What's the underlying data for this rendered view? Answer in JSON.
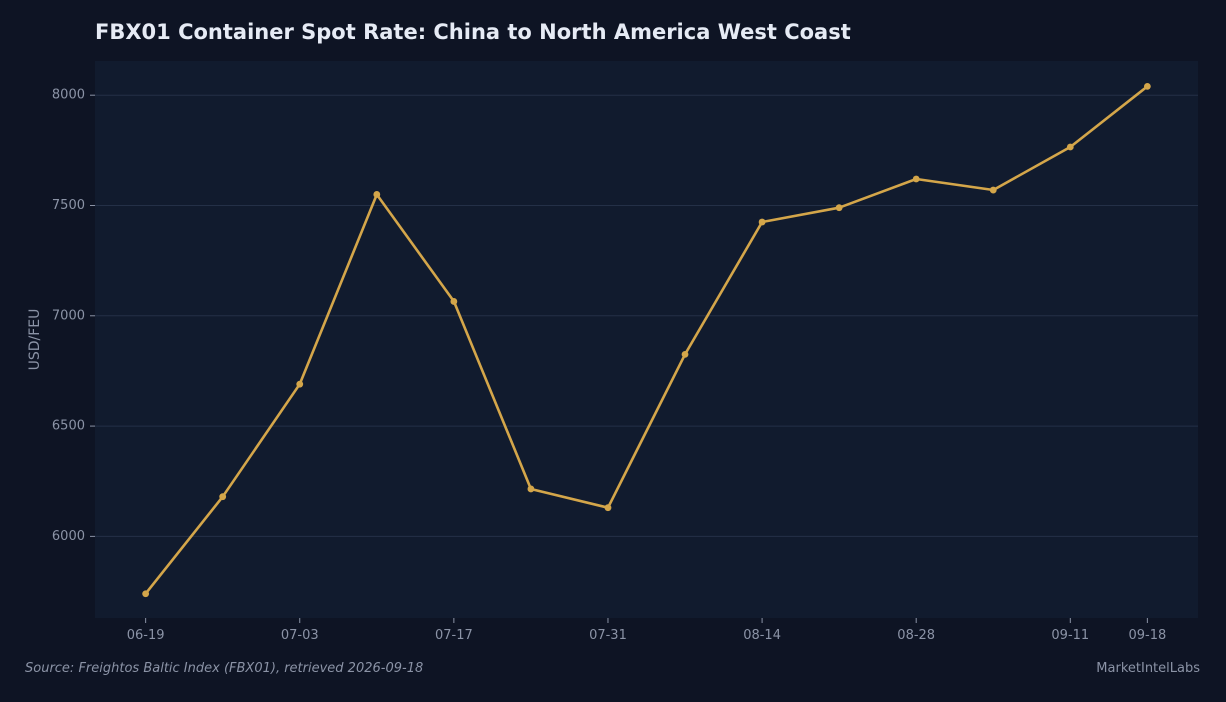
{
  "colors": {
    "page_background": "#0e1424",
    "plot_background": "#111b2e",
    "gridline": "#243047",
    "line": "#d4a64a",
    "title_text": "#e6ebf5",
    "axis_text": "#8b93a6"
  },
  "chart_data": {
    "type": "line",
    "title": "FBX01 Container Spot Rate: China to North America West Coast",
    "xlabel": "",
    "ylabel": "USD/FEU",
    "x_tick_labels": [
      "06-19",
      "07-03",
      "07-17",
      "07-31",
      "08-14",
      "08-28",
      "09-11",
      "09-18"
    ],
    "x_tick_days": [
      0,
      14,
      28,
      42,
      56,
      70,
      84,
      91
    ],
    "y_ticks": [
      6000,
      6500,
      7000,
      7500,
      8000
    ],
    "ylim": [
      5630,
      8155
    ],
    "xlim": [
      -4.6,
      95.6
    ],
    "grid": "horizontal",
    "series": [
      {
        "x_days": [
          0,
          7,
          14,
          21,
          28,
          35,
          42,
          49,
          56,
          63,
          70,
          77,
          84,
          91
        ],
        "dates": [
          "06-19",
          "06-26",
          "07-03",
          "07-10",
          "07-17",
          "07-24",
          "07-31",
          "08-07",
          "08-14",
          "08-21",
          "08-28",
          "09-04",
          "09-11",
          "09-18"
        ],
        "values": [
          5740,
          6180,
          6690,
          7550,
          7065,
          6215,
          6130,
          6825,
          7425,
          7490,
          7620,
          7570,
          7765,
          8040
        ]
      }
    ]
  },
  "footer": {
    "source": "Source: Freightos Baltic Index (FBX01), retrieved 2026-09-18",
    "brand": "MarketIntelLabs"
  }
}
